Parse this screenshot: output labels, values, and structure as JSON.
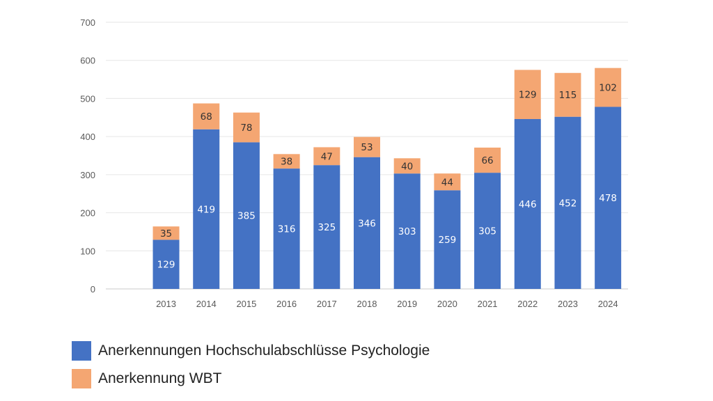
{
  "chart_data": {
    "type": "stacked-bar",
    "categories": [
      "",
      "2013",
      "2014",
      "2015",
      "2016",
      "2017",
      "2018",
      "2019",
      "2020",
      "2021",
      "2022",
      "2023",
      "2024"
    ],
    "series": [
      {
        "name": "Anerkennungen Hochschulabschlüsse Psychologie",
        "color": "#4472C4",
        "label_color": "#ffffff",
        "values": [
          null,
          129,
          419,
          385,
          316,
          325,
          346,
          303,
          259,
          305,
          446,
          452,
          478
        ]
      },
      {
        "name": "Anerkennung WBT",
        "color": "#F4A672",
        "label_color": "#333333",
        "values": [
          null,
          35,
          68,
          78,
          38,
          47,
          53,
          40,
          44,
          66,
          129,
          115,
          102
        ]
      }
    ],
    "yticks": [
      0,
      100,
      200,
      300,
      400,
      500,
      600,
      700
    ],
    "ylim": [
      0,
      700
    ],
    "grid": true,
    "legend_position": "bottom-left"
  }
}
